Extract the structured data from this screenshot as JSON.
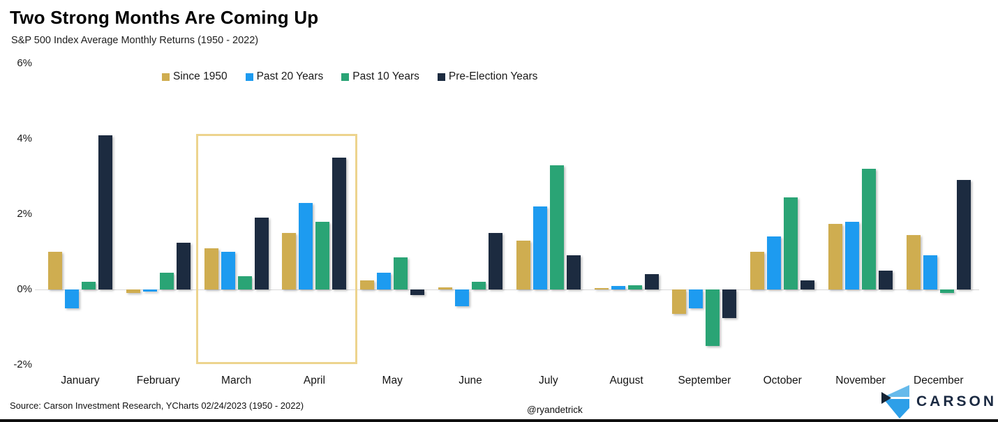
{
  "chart_data": {
    "type": "bar",
    "title": "Two Strong Months Are Coming Up",
    "subtitle": "S&P 500 Index Average Monthly Returns (1950 - 2022)",
    "categories": [
      "January",
      "February",
      "March",
      "April",
      "May",
      "June",
      "July",
      "August",
      "September",
      "October",
      "November",
      "December"
    ],
    "series": [
      {
        "name": "Since 1950",
        "color": "#CFAD50",
        "values": [
          1.0,
          -0.1,
          1.1,
          1.5,
          0.25,
          0.05,
          1.3,
          0.03,
          -0.65,
          1.0,
          1.75,
          1.45
        ]
      },
      {
        "name": "Past 20 Years",
        "color": "#1D9BF0",
        "values": [
          -0.5,
          -0.05,
          1.0,
          2.3,
          0.45,
          -0.45,
          2.2,
          0.1,
          -0.5,
          1.4,
          1.8,
          0.9
        ]
      },
      {
        "name": "Past 10 Years",
        "color": "#2AA475",
        "values": [
          0.2,
          0.45,
          0.35,
          1.8,
          0.85,
          0.2,
          3.3,
          0.12,
          -1.5,
          2.45,
          3.2,
          -0.1
        ]
      },
      {
        "name": "Pre-Election Years",
        "color": "#1C2B40",
        "values": [
          4.1,
          1.25,
          1.9,
          3.5,
          -0.15,
          1.5,
          0.9,
          0.4,
          -0.75,
          0.25,
          0.5,
          2.9
        ]
      }
    ],
    "ylabel": "",
    "xlabel": "",
    "ylim": [
      -2,
      6
    ],
    "yticks": [
      {
        "label": "6%",
        "value": 6
      },
      {
        "label": "4%",
        "value": 4
      },
      {
        "label": "2%",
        "value": 2
      },
      {
        "label": "0%",
        "value": 0
      },
      {
        "label": "-2%",
        "value": -2
      }
    ],
    "grid": false,
    "legend_position": "top-center",
    "highlight": {
      "from_month": "March",
      "to_month": "April",
      "border_color": "#EDD48E"
    }
  },
  "footer": {
    "source": "Source: Carson Investment Research, YCharts 02/24/2023 (1950 - 2022)",
    "handle": "@ryandetrick",
    "logo_text": "CARSON",
    "logo_colors": {
      "light_blue": "#66BAEB",
      "mid_blue": "#2D9FE8",
      "navy": "#152435"
    }
  }
}
